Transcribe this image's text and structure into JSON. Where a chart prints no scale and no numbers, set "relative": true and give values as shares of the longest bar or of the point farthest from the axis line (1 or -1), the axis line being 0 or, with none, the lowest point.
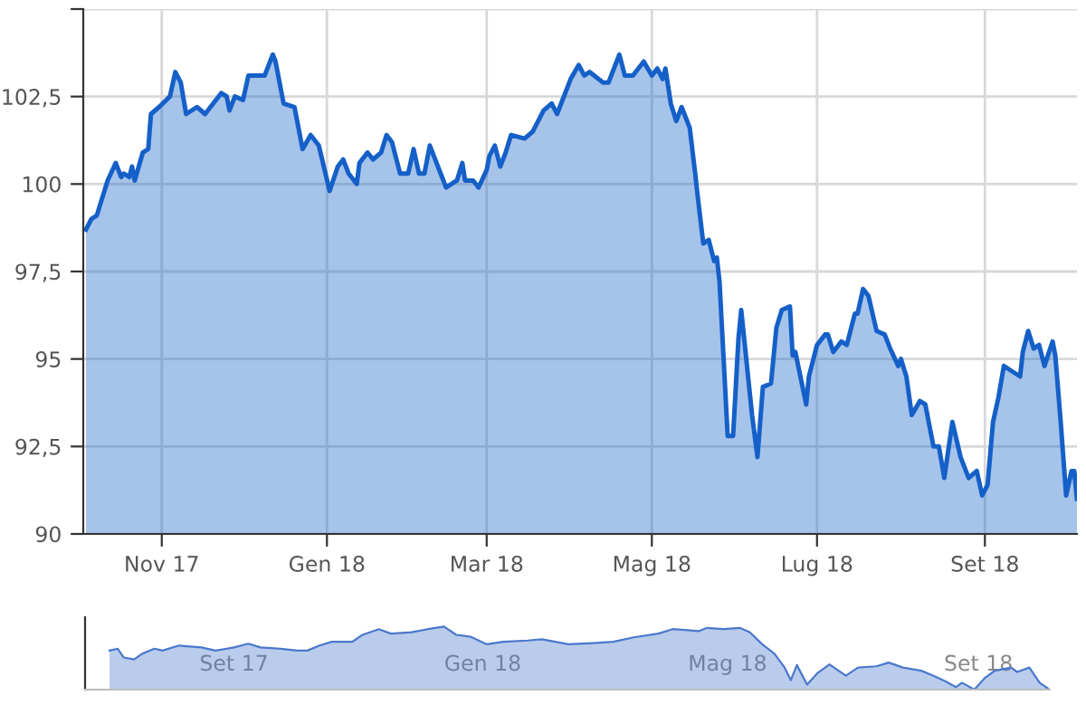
{
  "chart_data": [
    {
      "type": "area",
      "grid": true,
      "x": [
        "2017-10-04",
        "2017-10-06",
        "2017-10-08",
        "2017-10-12",
        "2017-10-15",
        "2017-10-17",
        "2017-10-18",
        "2017-10-20",
        "2017-10-21",
        "2017-10-22",
        "2017-10-25",
        "2017-10-27",
        "2017-10-28",
        "2017-10-31",
        "2017-11-04",
        "2017-11-06",
        "2017-11-08",
        "2017-11-10",
        "2017-11-14",
        "2017-11-17",
        "2017-11-19",
        "2017-11-23",
        "2017-11-25",
        "2017-11-26",
        "2017-11-28",
        "2017-12-01",
        "2017-12-03",
        "2017-12-07",
        "2017-12-09",
        "2017-12-12",
        "2017-12-13",
        "2017-12-16",
        "2017-12-20",
        "2017-12-23",
        "2017-12-26",
        "2017-12-29",
        "2018-01-02",
        "2018-01-05",
        "2018-01-07",
        "2018-01-09",
        "2018-01-12",
        "2018-01-13",
        "2018-01-16",
        "2018-01-18",
        "2018-01-21",
        "2018-01-23",
        "2018-01-25",
        "2018-01-28",
        "2018-01-31",
        "2018-02-02",
        "2018-02-04",
        "2018-02-06",
        "2018-02-08",
        "2018-02-12",
        "2018-02-14",
        "2018-02-18",
        "2018-02-20",
        "2018-02-21",
        "2018-02-24",
        "2018-02-26",
        "2018-03-01",
        "2018-03-02",
        "2018-03-04",
        "2018-03-06",
        "2018-03-08",
        "2018-03-10",
        "2018-03-15",
        "2018-03-18",
        "2018-03-22",
        "2018-03-25",
        "2018-03-27",
        "2018-04-01",
        "2018-04-04",
        "2018-04-06",
        "2018-04-08",
        "2018-04-13",
        "2018-04-15",
        "2018-04-19",
        "2018-04-21",
        "2018-04-24",
        "2018-04-28",
        "2018-05-01",
        "2018-05-03",
        "2018-05-05",
        "2018-05-06",
        "2018-05-08",
        "2018-05-10",
        "2018-05-12",
        "2018-05-15",
        "2018-05-17",
        "2018-05-18",
        "2018-05-20",
        "2018-05-22",
        "2018-05-24",
        "2018-05-25",
        "2018-05-26",
        "2018-05-29",
        "2018-05-31",
        "2018-06-02",
        "2018-06-03",
        "2018-06-05",
        "2018-06-07",
        "2018-06-09",
        "2018-06-11",
        "2018-06-14",
        "2018-06-16",
        "2018-06-18",
        "2018-06-21",
        "2018-06-22",
        "2018-06-23",
        "2018-06-27",
        "2018-06-28",
        "2018-07-01",
        "2018-07-04",
        "2018-07-05",
        "2018-07-07",
        "2018-07-10",
        "2018-07-12",
        "2018-07-15",
        "2018-07-16",
        "2018-07-18",
        "2018-07-20",
        "2018-07-23",
        "2018-07-26",
        "2018-07-28",
        "2018-07-31",
        "2018-08-01",
        "2018-08-03",
        "2018-08-05",
        "2018-08-08",
        "2018-08-10",
        "2018-08-13",
        "2018-08-15",
        "2018-08-17",
        "2018-08-20",
        "2018-08-23",
        "2018-08-26",
        "2018-08-29",
        "2018-08-31",
        "2018-09-02",
        "2018-09-04",
        "2018-09-06",
        "2018-09-08",
        "2018-09-10",
        "2018-09-14",
        "2018-09-15",
        "2018-09-17",
        "2018-09-19",
        "2018-09-21",
        "2018-09-23",
        "2018-09-26",
        "2018-09-27",
        "2018-09-29",
        "2018-10-01",
        "2018-10-03",
        "2018-10-04",
        "2018-10-05"
      ],
      "series": [
        {
          "color": "#1560c8",
          "values": [
            98.7,
            99.0,
            99.1,
            100.1,
            100.6,
            100.2,
            100.3,
            100.2,
            100.5,
            100.1,
            100.9,
            101.0,
            102.0,
            102.2,
            102.5,
            103.2,
            102.9,
            102.0,
            102.2,
            102.0,
            102.2,
            102.6,
            102.5,
            102.1,
            102.5,
            102.4,
            103.1,
            103.1,
            103.1,
            103.7,
            103.5,
            102.3,
            102.2,
            101.0,
            101.4,
            101.1,
            99.8,
            100.5,
            100.7,
            100.3,
            100.0,
            100.6,
            100.9,
            100.7,
            100.9,
            101.4,
            101.2,
            100.3,
            100.3,
            101.0,
            100.3,
            100.3,
            101.1,
            100.3,
            99.9,
            100.1,
            100.6,
            100.1,
            100.1,
            99.9,
            100.4,
            100.8,
            101.1,
            100.5,
            100.9,
            101.4,
            101.3,
            101.5,
            102.1,
            102.3,
            102.0,
            103.0,
            103.4,
            103.1,
            103.2,
            102.9,
            102.9,
            103.7,
            103.1,
            103.1,
            103.5,
            103.1,
            103.3,
            103.0,
            103.3,
            102.3,
            101.8,
            102.2,
            101.6,
            100.3,
            99.6,
            98.3,
            98.4,
            97.8,
            97.9,
            97.2,
            92.8,
            92.8,
            95.6,
            96.4,
            94.9,
            93.4,
            92.2,
            94.2,
            94.3,
            95.9,
            96.4,
            96.5,
            95.1,
            95.2,
            93.7,
            94.5,
            95.4,
            95.7,
            95.7,
            95.2,
            95.5,
            95.4,
            96.3,
            96.3,
            97.0,
            96.8,
            95.8,
            95.7,
            95.3,
            94.8,
            95.0,
            94.5,
            93.4,
            93.8,
            93.7,
            92.5,
            92.5,
            91.6,
            93.2,
            92.2,
            91.6,
            91.8,
            91.1,
            91.4,
            93.2,
            93.9,
            94.8,
            94.7,
            94.5,
            95.2,
            95.8,
            95.3,
            95.4,
            94.8,
            95.5,
            95.1,
            93.2,
            91.1,
            91.8,
            91.8,
            91.0
          ]
        }
      ],
      "xlim": [
        "2017-10-03",
        "2018-10-05"
      ],
      "xticks": [
        {
          "value": "2017-11-01",
          "label": "Nov 17"
        },
        {
          "value": "2018-01-01",
          "label": "Gen 18"
        },
        {
          "value": "2018-03-01",
          "label": "Mar 18"
        },
        {
          "value": "2018-05-01",
          "label": "Mag 18"
        },
        {
          "value": "2018-07-01",
          "label": "Lug 18"
        },
        {
          "value": "2018-09-01",
          "label": "Set 18"
        }
      ],
      "ylim": [
        90,
        105
      ],
      "yticks": [
        90,
        {
          "value": 92.5,
          "label": "92,5"
        },
        95,
        {
          "value": 97.5,
          "label": "97,5"
        },
        100,
        {
          "value": 102.5,
          "label": "102,5"
        },
        {
          "value": 105,
          "label": null
        }
      ]
    },
    {
      "type": "area",
      "relative": true,
      "grid": "x",
      "tick_labels": "x",
      "x": [
        "2017-07-02",
        "2017-07-06",
        "2017-07-09",
        "2017-07-14",
        "2017-07-18",
        "2017-07-24",
        "2017-07-28",
        "2017-08-05",
        "2017-08-16",
        "2017-08-23",
        "2017-09-01",
        "2017-09-08",
        "2017-09-14",
        "2017-09-24",
        "2017-10-02",
        "2017-10-07",
        "2017-10-13",
        "2017-10-19",
        "2017-10-29",
        "2017-11-03",
        "2017-11-11",
        "2017-11-17",
        "2017-11-27",
        "2017-12-05",
        "2017-12-13",
        "2017-12-19",
        "2017-12-26",
        "2018-01-03",
        "2018-01-11",
        "2018-01-23",
        "2018-01-30",
        "2018-02-12",
        "2018-02-24",
        "2018-03-06",
        "2018-03-16",
        "2018-03-28",
        "2018-04-04",
        "2018-04-17",
        "2018-04-21",
        "2018-04-29",
        "2018-05-07",
        "2018-05-12",
        "2018-05-18",
        "2018-05-24",
        "2018-05-29",
        "2018-06-01",
        "2018-06-04",
        "2018-06-09",
        "2018-06-14",
        "2018-06-20",
        "2018-06-28",
        "2018-07-04",
        "2018-07-13",
        "2018-07-19",
        "2018-07-26",
        "2018-08-04",
        "2018-08-10",
        "2018-08-16",
        "2018-08-21",
        "2018-08-24",
        "2018-08-30",
        "2018-09-04",
        "2018-09-09",
        "2018-09-17",
        "2018-09-20",
        "2018-09-26",
        "2018-10-01",
        "2018-10-05"
      ],
      "series": [
        {
          "color": "#4a78cc",
          "values": [
            0.62,
            0.65,
            0.51,
            0.48,
            0.57,
            0.65,
            0.62,
            0.7,
            0.67,
            0.62,
            0.67,
            0.73,
            0.67,
            0.65,
            0.62,
            0.62,
            0.7,
            0.76,
            0.76,
            0.87,
            0.96,
            0.89,
            0.91,
            0.96,
            1.0,
            0.87,
            0.84,
            0.72,
            0.76,
            0.78,
            0.8,
            0.72,
            0.74,
            0.76,
            0.83,
            0.89,
            0.96,
            0.93,
            0.98,
            0.96,
            0.98,
            0.91,
            0.72,
            0.57,
            0.35,
            0.15,
            0.39,
            0.08,
            0.26,
            0.4,
            0.22,
            0.35,
            0.37,
            0.43,
            0.35,
            0.3,
            0.22,
            0.13,
            0.04,
            0.11,
            0,
            0.18,
            0.3,
            0.35,
            0.28,
            0.35,
            0.11,
            0.02
          ]
        }
      ],
      "xlim": [
        "2017-06-20",
        "2018-10-06"
      ],
      "xticks": [
        {
          "value": "2017-09-01",
          "label": "Set 17"
        },
        {
          "value": "2018-01-01",
          "label": "Gen 18"
        },
        {
          "value": "2018-05-01",
          "label": "Mag 18"
        },
        {
          "value": "2018-09-01",
          "label": "Set 18"
        }
      ]
    }
  ]
}
